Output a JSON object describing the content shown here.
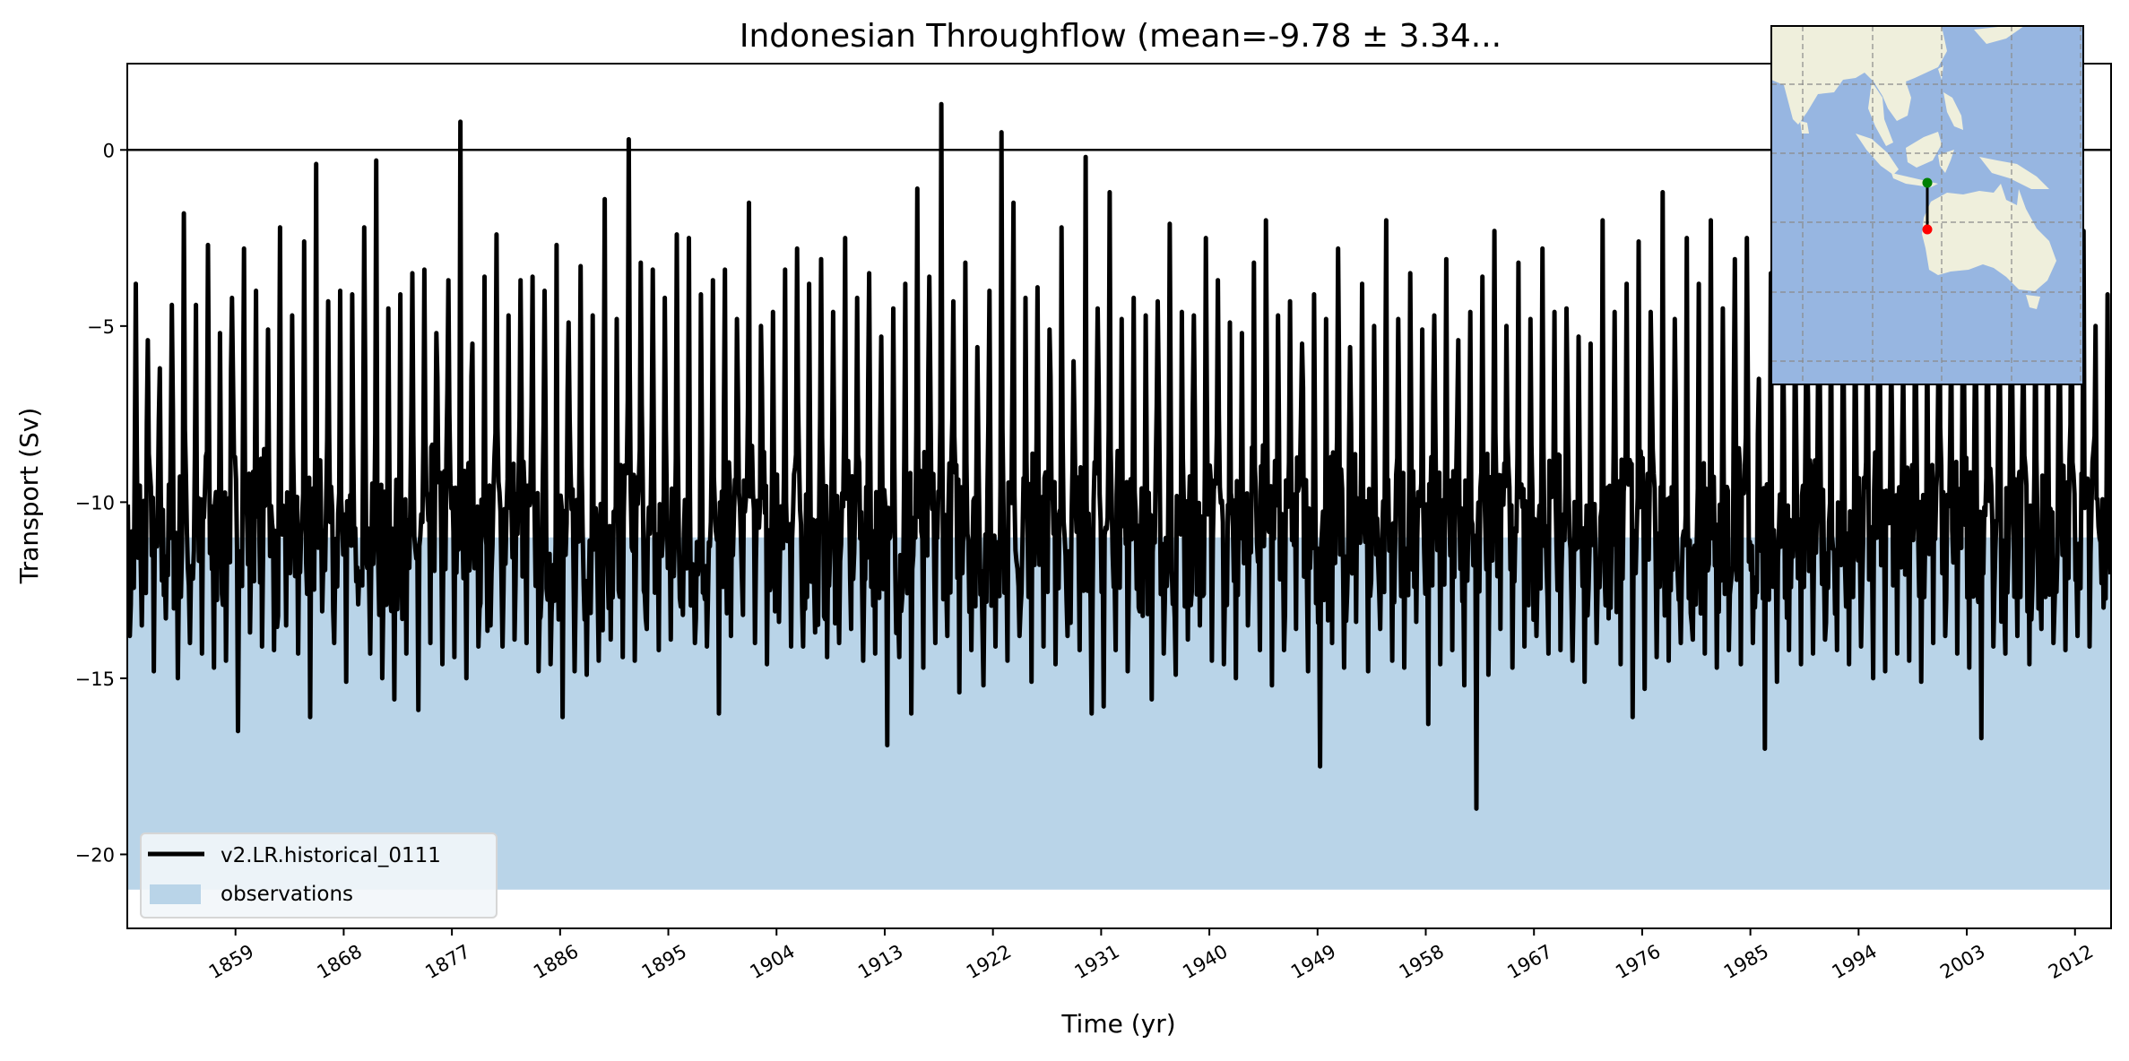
{
  "chart_data": {
    "type": "line",
    "title": "Indonesian Throughflow (mean=-9.78 ± 3.34...",
    "xlabel": "Time (yr)",
    "ylabel": "Transport (Sv)",
    "xlim": [
      1850,
      2015
    ],
    "ylim": [
      -22.1,
      2.45
    ],
    "x_ticks": [
      "1859",
      "1868",
      "1877",
      "1886",
      "1895",
      "1904",
      "1913",
      "1922",
      "1931",
      "1940",
      "1949",
      "1958",
      "1967",
      "1976",
      "1985",
      "1994",
      "2003",
      "2012"
    ],
    "y_ticks": [
      0,
      -5,
      -10,
      -15,
      -20
    ],
    "y_tick_labels": [
      "0",
      "−5",
      "−10",
      "−15",
      "−20"
    ],
    "grid": false,
    "reference_line": 0,
    "legend_position": "lower-left",
    "series": [
      {
        "name": "v2.LR.historical_0111",
        "color": "#000000",
        "sampling": "annual extremes of a monthly series (estimated)",
        "years_start": 1850,
        "annual_max": [
          -3.8,
          -5.4,
          -6.2,
          -4.4,
          -1.8,
          -4.4,
          -2.7,
          -5.2,
          -4.2,
          -2.8,
          -4.0,
          -5.1,
          -2.2,
          -4.7,
          -2.6,
          -0.4,
          -4.3,
          -4.0,
          -4.1,
          -2.2,
          -0.3,
          -4.5,
          -4.1,
          -3.5,
          -3.4,
          -5.2,
          -3.7,
          0.8,
          -5.5,
          -3.6,
          -2.4,
          -4.7,
          -3.7,
          -3.6,
          -4.0,
          -2.7,
          -4.9,
          -3.3,
          -4.7,
          -1.4,
          -4.8,
          0.3,
          -3.2,
          -3.4,
          -4.2,
          -2.4,
          -2.5,
          -4.1,
          -3.7,
          -3.4,
          -4.8,
          -1.5,
          -5.0,
          -4.6,
          -3.4,
          -2.8,
          -3.8,
          -3.1,
          -4.6,
          -2.5,
          -4.2,
          -3.5,
          -5.3,
          -4.5,
          -3.8,
          -1.1,
          -3.6,
          1.3,
          -4.3,
          -3.2,
          -5.6,
          -4.0,
          0.5,
          -1.5,
          -4.2,
          -3.9,
          -5.1,
          -2.2,
          -6.0,
          -0.2,
          -4.5,
          -1.2,
          -4.8,
          -4.2,
          -4.7,
          -4.3,
          -2.1,
          -4.6,
          -4.7,
          -2.5,
          -3.7,
          -4.9,
          -5.2,
          -3.2,
          -2.0,
          -4.7,
          -4.3,
          -5.5,
          -4.1,
          -4.8,
          -2.8,
          -5.6,
          -3.8,
          -5.0,
          -2.0,
          -4.8,
          -3.5,
          -5.1,
          -4.7,
          -3.1,
          -5.4,
          -4.6,
          -3.6,
          -2.3,
          -5.0,
          -3.2,
          -4.8,
          -2.8,
          -4.6,
          -4.5,
          -5.3,
          -5.5,
          -2.0,
          -4.6,
          -3.8,
          -2.6,
          -4.6,
          -1.2,
          -4.8,
          -2.5,
          -3.8,
          -2.0,
          -4.5,
          -3.1,
          -2.5,
          -6.5,
          -3.5,
          -4.9,
          -4.7,
          -5.5,
          -2.9,
          -4.0,
          -3.7,
          -4.5,
          -4.4,
          -2.6,
          -5.5,
          -6.0,
          -3.0,
          -4.6,
          -1.1,
          -5.0,
          -3.0,
          -4.8,
          -2.4,
          -4.6,
          -3.4,
          -5.5,
          -4.3,
          -2.3,
          -4.4,
          -2.5,
          -2.3,
          -5.0,
          -4.1
        ],
        "annual_min": [
          -13.8,
          -13.5,
          -14.8,
          -13.3,
          -15.0,
          -14.0,
          -14.3,
          -14.7,
          -14.5,
          -16.5,
          -13.7,
          -14.1,
          -14.2,
          -13.5,
          -14.3,
          -16.1,
          -13.1,
          -14.0,
          -15.1,
          -12.9,
          -14.3,
          -15.0,
          -15.6,
          -14.3,
          -15.9,
          -14.0,
          -14.6,
          -14.4,
          -15.0,
          -14.1,
          -13.5,
          -14.1,
          -13.9,
          -14.0,
          -14.8,
          -14.6,
          -16.1,
          -14.8,
          -14.9,
          -14.5,
          -13.9,
          -14.4,
          -14.5,
          -13.6,
          -14.2,
          -13.9,
          -13.2,
          -14.0,
          -14.1,
          -16.0,
          -13.8,
          -13.2,
          -14.0,
          -14.6,
          -13.4,
          -14.1,
          -14.1,
          -13.7,
          -14.4,
          -14.0,
          -13.6,
          -14.5,
          -14.3,
          -16.9,
          -14.4,
          -16.0,
          -14.7,
          -14.0,
          -13.8,
          -15.4,
          -14.2,
          -15.2,
          -14.1,
          -14.5,
          -13.8,
          -15.1,
          -14.1,
          -14.6,
          -13.8,
          -14.2,
          -16.0,
          -15.8,
          -14.2,
          -14.8,
          -13.1,
          -15.6,
          -14.3,
          -14.9,
          -13.9,
          -13.5,
          -14.5,
          -14.6,
          -15.0,
          -13.5,
          -14.2,
          -15.2,
          -14.2,
          -13.6,
          -14.8,
          -17.5,
          -14.0,
          -14.7,
          -13.4,
          -14.8,
          -13.6,
          -14.5,
          -14.7,
          -13.4,
          -16.3,
          -14.6,
          -14.2,
          -15.2,
          -18.7,
          -14.9,
          -13.6,
          -14.7,
          -14.1,
          -13.8,
          -14.3,
          -14.2,
          -14.5,
          -15.1,
          -14.0,
          -13.3,
          -14.6,
          -16.1,
          -15.3,
          -14.4,
          -14.5,
          -14.0,
          -13.9,
          -14.3,
          -14.7,
          -14.2,
          -14.6,
          -14.0,
          -17.0,
          -15.1,
          -14.2,
          -14.6,
          -14.3,
          -13.9,
          -14.2,
          -14.6,
          -14.1,
          -15.0,
          -14.8,
          -14.3,
          -14.5,
          -15.1,
          -14.0,
          -13.8,
          -14.3,
          -14.7,
          -16.7,
          -14.1,
          -14.3,
          -13.8,
          -14.6,
          -13.6,
          -14.0,
          -14.2,
          -13.8,
          -14.1,
          -12.3
        ]
      },
      {
        "name": "observations",
        "type": "band",
        "color": "#b9d4e8",
        "range": [
          -21,
          -11
        ]
      }
    ],
    "inset_map": {
      "ocean_color": "#97b6e1",
      "land_color": "#efefdc",
      "section_start_color": "#008000",
      "section_end_color": "#ff0000"
    }
  }
}
